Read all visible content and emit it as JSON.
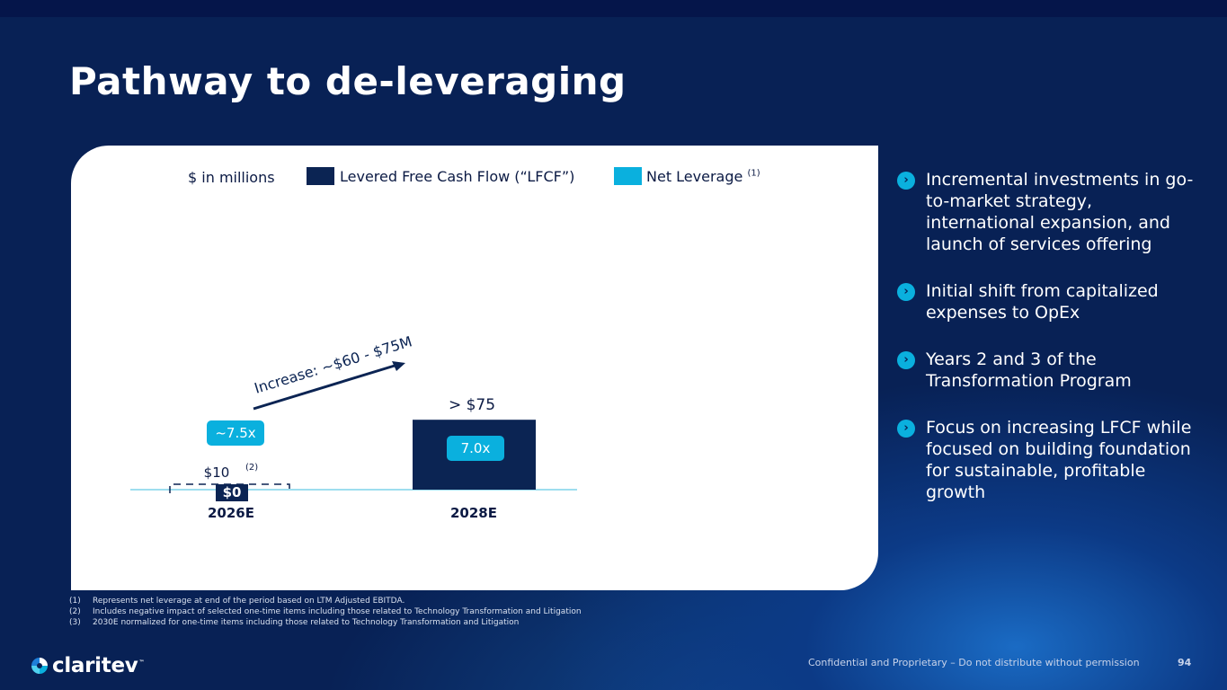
{
  "slide": {
    "title": "Pathway to de-leveraging",
    "page_number": "94",
    "confidential": "Confidential and Proprietary – Do not distribute without permission"
  },
  "brand": {
    "name": "claritev",
    "trademark": "™"
  },
  "colors": {
    "background": "#082155",
    "lfcf": "#0b2453",
    "leverage": "#0ab0de",
    "card": "#ffffff"
  },
  "legend": {
    "units": "$ in millions",
    "lfcf_label": "Levered Free Cash Flow (“LFCF”)",
    "leverage_label": "Net Leverage",
    "leverage_sup": "(1)"
  },
  "chart_data": {
    "type": "bar",
    "categories": [
      "2026E",
      "2028E"
    ],
    "series": [
      {
        "name": "Levered Free Cash Flow (“LFCF”)",
        "values": [
          10,
          75
        ],
        "labels": [
          "$10",
          "> $75"
        ],
        "label_sup": [
          "(2)",
          ""
        ]
      },
      {
        "name": "Net Leverage",
        "values": [
          7.5,
          7.0
        ],
        "labels": [
          "~7.5x",
          "7.0x"
        ]
      }
    ],
    "zero_label": "$0",
    "increase_annotation": "Increase: ~$60 - $75M",
    "ylim": [
      0,
      80
    ],
    "xlabel": "",
    "ylabel": ""
  },
  "bullets": [
    {
      "icon": "chevron-right-icon",
      "text": "Incremental investments in go-to-market strategy, international expansion, and launch of services offering"
    },
    {
      "icon": "chevron-right-icon",
      "text": "Initial shift from capitalized expenses to OpEx"
    },
    {
      "icon": "chevron-right-icon",
      "text": "Years 2 and 3 of the Transformation Program"
    },
    {
      "icon": "chevron-right-icon",
      "text": "Focus on increasing LFCF while focused on building foundation for sustainable, profitable growth"
    }
  ],
  "footnotes": [
    {
      "num": "(1)",
      "text": "Represents net leverage at end of the period based on LTM Adjusted EBITDA."
    },
    {
      "num": "(2)",
      "text": "Includes negative impact of selected one-time items including those related to Technology Transformation and Litigation"
    },
    {
      "num": "(3)",
      "text": "2030E normalized for one-time items including those related to Technology Transformation and Litigation"
    }
  ]
}
